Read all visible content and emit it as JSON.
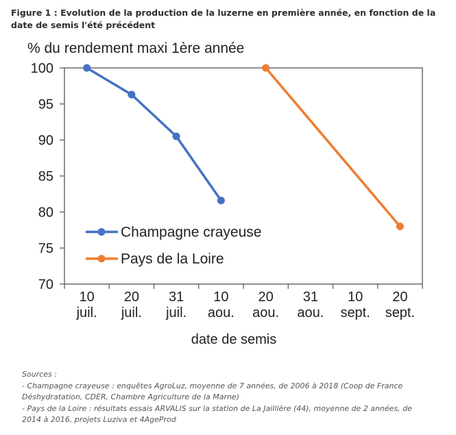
{
  "figure_title": "Figure 1 : Evolution de la production de la luzerne en première année, en fonction de la date de semis l'été précédent",
  "chart_data": {
    "type": "line",
    "ylabel": "% du rendement maxi 1ère année",
    "xlabel": "date de semis",
    "categories": [
      [
        "10",
        "juil."
      ],
      [
        "20",
        "juil."
      ],
      [
        "31",
        "juil."
      ],
      [
        "10",
        "aou."
      ],
      [
        "20",
        "aou."
      ],
      [
        "31",
        "aou."
      ],
      [
        "10",
        "sept."
      ],
      [
        "20",
        "sept."
      ]
    ],
    "yticks": [
      100,
      95,
      90,
      85,
      80,
      75,
      70
    ],
    "ylim": [
      70,
      100
    ],
    "grid": false,
    "legend_position": "bottom-left",
    "series": [
      {
        "name": "Champagne crayeuse",
        "color": "#4472c4",
        "points": [
          [
            0,
            100
          ],
          [
            1,
            96.3
          ],
          [
            2,
            90.5
          ],
          [
            3,
            81.6
          ]
        ]
      },
      {
        "name": "Pays de la Loire",
        "color": "#ed7d31",
        "points": [
          [
            4,
            100
          ],
          [
            7,
            78
          ]
        ]
      }
    ]
  },
  "sources": {
    "heading": "Sources :",
    "lines": [
      "- Champagne crayeuse : enquêtes AgroLuz, moyenne de 7 années, de 2006 à 2018 (Coop de France",
      "Déshydratation, CDER, Chambre Agriculture de la Marne)",
      "- Pays de la Loire : résultats essais ARVALIS sur la station de La Jaillière (44), moyenne de 2 années, de",
      "2014 à 2016, projets Luziva et 4AgeProd"
    ]
  }
}
